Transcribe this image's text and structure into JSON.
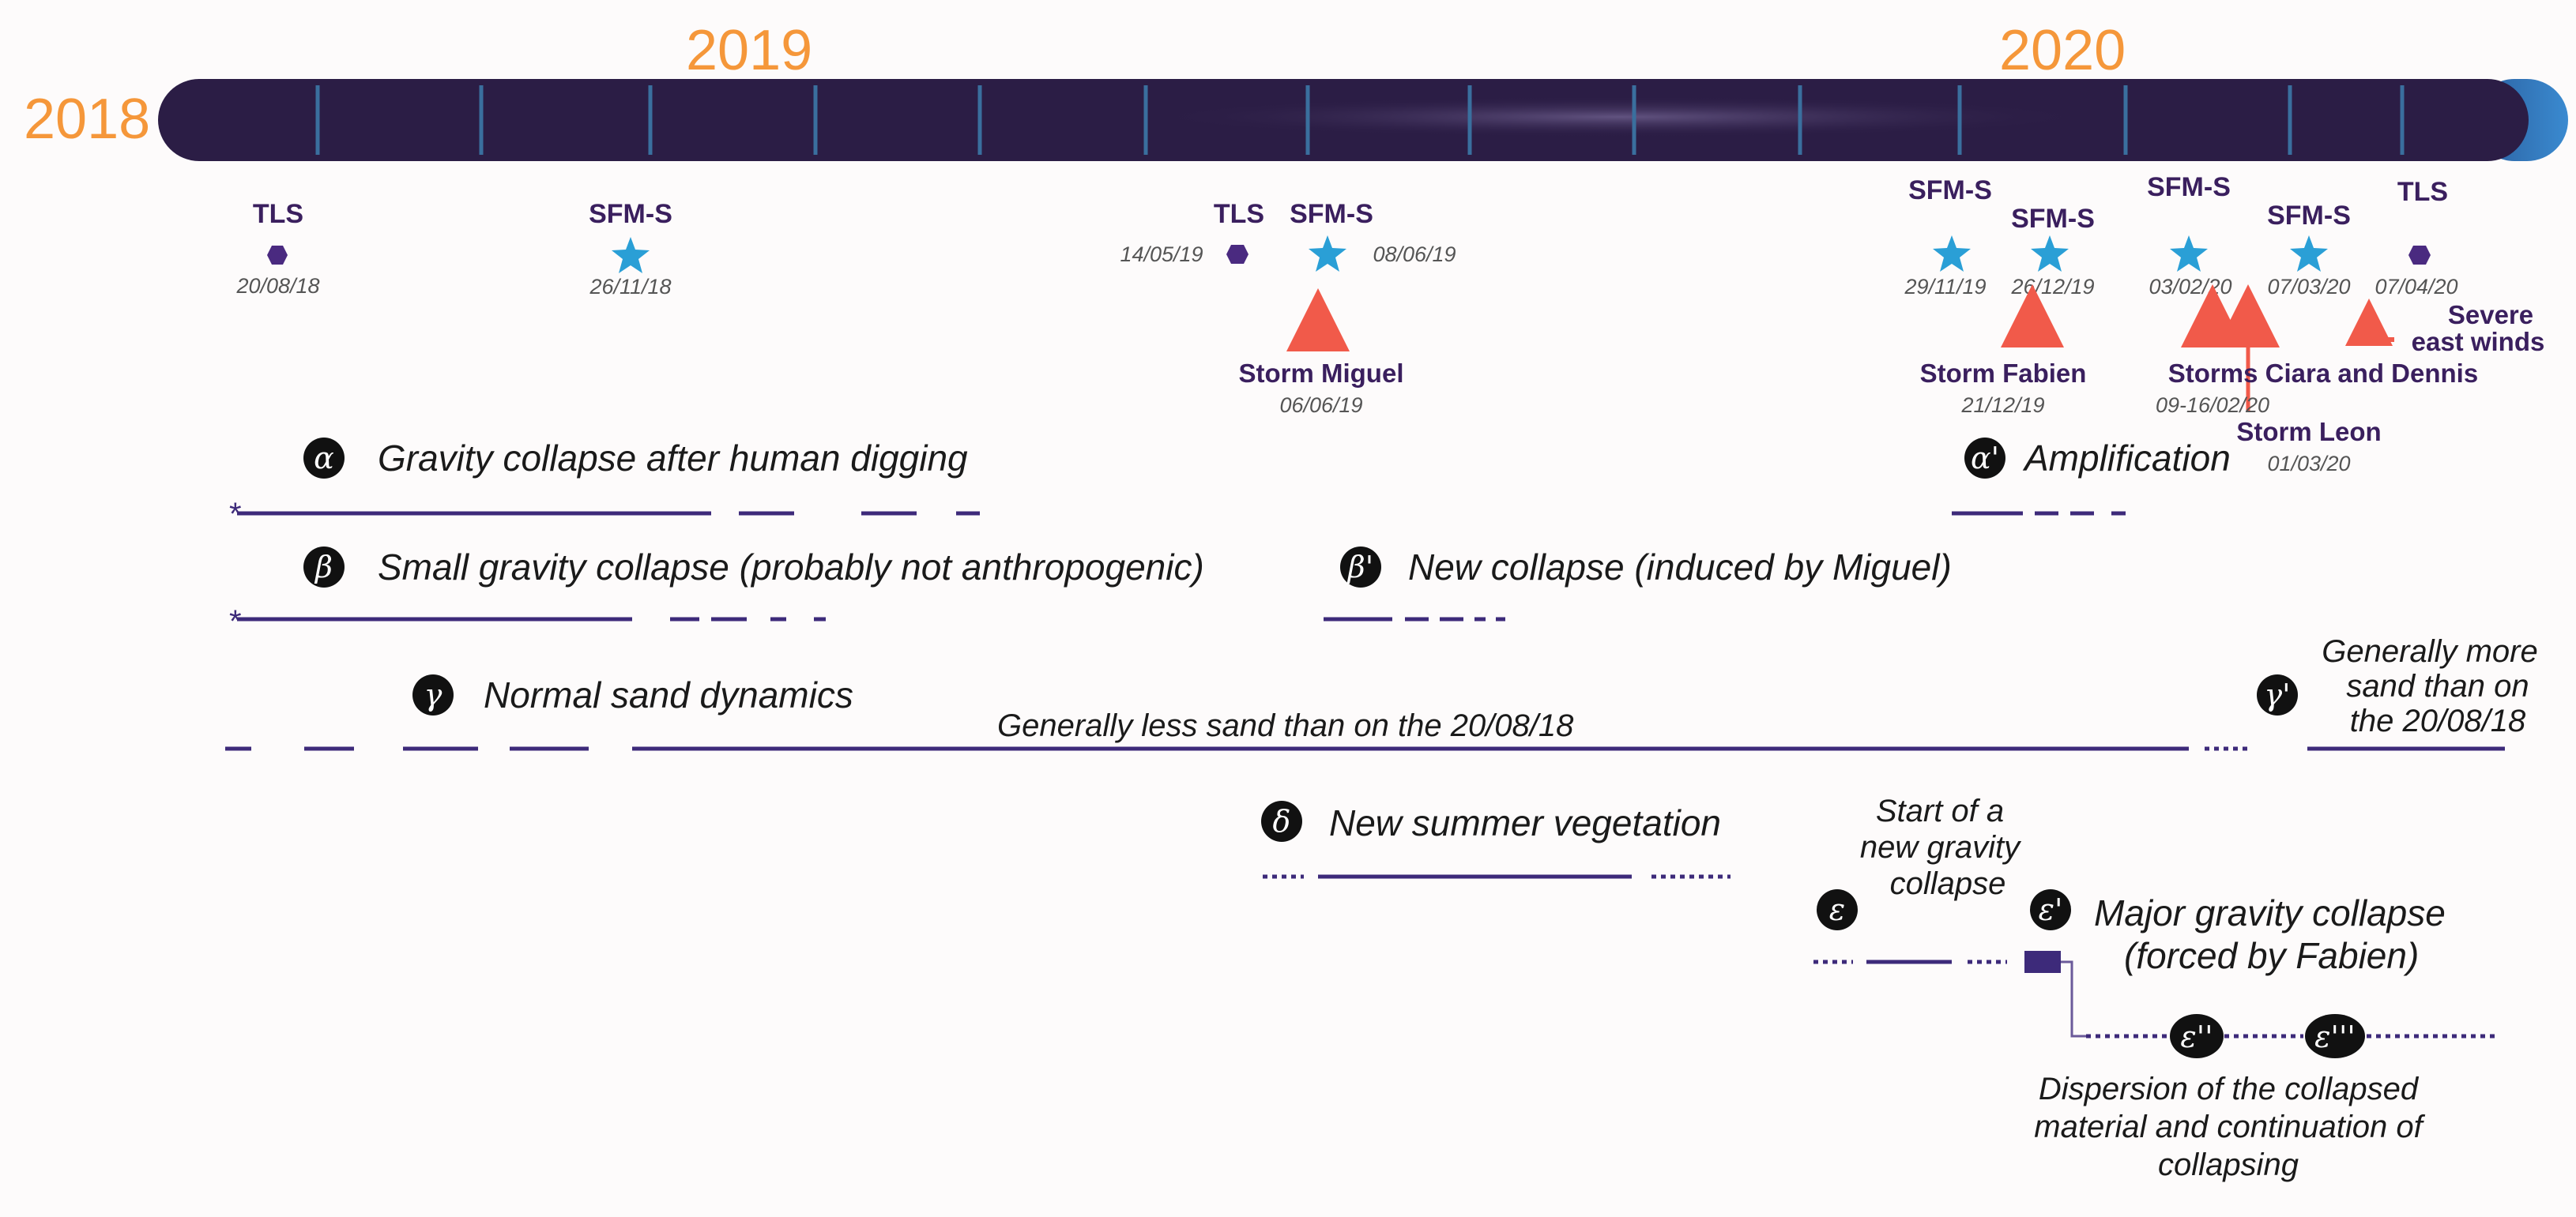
{
  "colors": {
    "bar": "#2b1d45",
    "tick": "#3a6f9e",
    "bar_end": "#2e7fc4",
    "year": "#f5973a",
    "purple": "#3a1f5e",
    "star": "#2a9fd6",
    "hex": "#4a2a80",
    "arrow": "#f15a4a",
    "line": "#3d2a7a"
  },
  "years": {
    "y2018": "2018",
    "y2019": "2019",
    "y2020": "2020"
  },
  "surveys": [
    {
      "type": "TLS",
      "date": "20/08/18"
    },
    {
      "type": "SFM-S",
      "date": "26/11/18"
    },
    {
      "type": "TLS",
      "date": "14/05/19"
    },
    {
      "type": "SFM-S",
      "date": "08/06/19"
    },
    {
      "type": "SFM-S",
      "date": "29/11/19"
    },
    {
      "type": "SFM-S",
      "date": "26/12/19"
    },
    {
      "type": "SFM-S",
      "date": "03/02/20"
    },
    {
      "type": "SFM-S",
      "date": "07/03/20"
    },
    {
      "type": "TLS",
      "date": "07/04/20"
    }
  ],
  "events": {
    "miguel": {
      "name": "Storm Miguel",
      "date": "06/06/19"
    },
    "fabien": {
      "name": "Storm Fabien",
      "date": "21/12/19"
    },
    "ciara_dennis": {
      "name": "Storms Ciara and Dennis",
      "date": "09-16/02/20"
    },
    "leon": {
      "name": "Storm Leon",
      "date": "01/03/20"
    },
    "east_winds": {
      "line1": "Severe",
      "line2": "east winds"
    }
  },
  "phases": {
    "alpha": {
      "symbol": "α",
      "label": "Gravity collapse after human digging"
    },
    "alpha_prime": {
      "symbol": "α'",
      "label": "Amplification"
    },
    "beta": {
      "symbol": "β",
      "label": "Small gravity collapse (probably not anthropogenic)"
    },
    "beta_prime": {
      "symbol": "β'",
      "label": "New collapse (induced by Miguel)"
    },
    "gamma": {
      "symbol": "γ",
      "label": "Normal sand dynamics"
    },
    "gamma_note": "Generally less sand than on the 20/08/18",
    "gamma_prime": {
      "symbol": "γ'",
      "line1": "Generally more",
      "line2": "sand than on",
      "line3": "the 20/08/18"
    },
    "delta": {
      "symbol": "δ",
      "label": "New summer vegetation"
    },
    "epsilon": {
      "symbol": "ε",
      "line1": "Start of a",
      "line2": "new gravity",
      "line3": "collapse"
    },
    "epsilon_prime": {
      "symbol": "ε'",
      "line1": "Major gravity collapse",
      "line2": "(forced by Fabien)"
    },
    "epsilon_2": {
      "symbol": "ε''"
    },
    "epsilon_3": {
      "symbol": "ε'''"
    },
    "dispersion": {
      "line1": "Dispersion of the collapsed",
      "line2": "material and continuation of",
      "line3": "collapsing"
    }
  }
}
